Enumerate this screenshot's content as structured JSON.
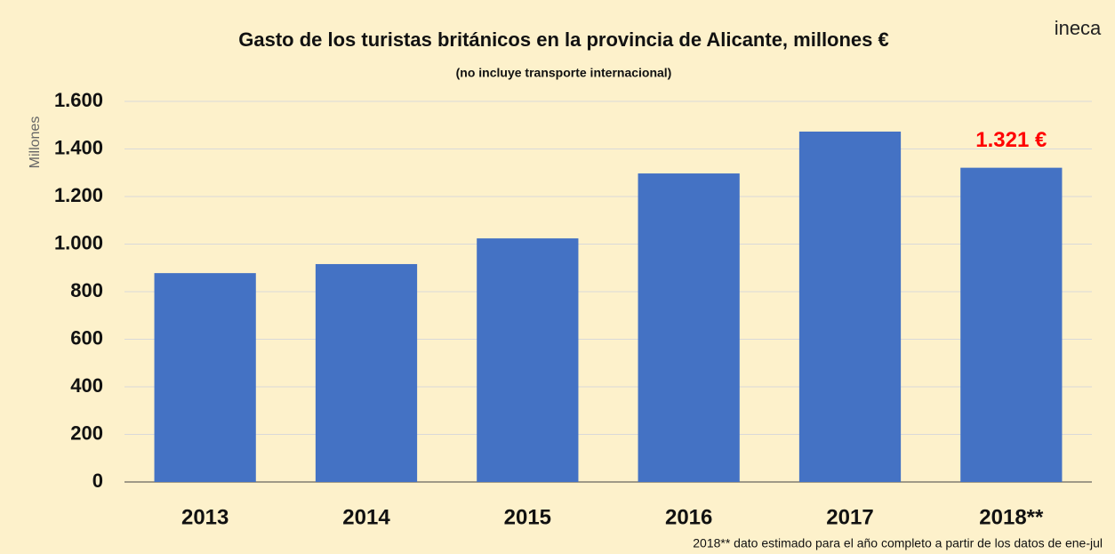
{
  "chart_data": {
    "type": "bar",
    "title": "Gasto de los turistas británicos en la provincia de Alicante, millones €",
    "subtitle": "(no incluye transporte internacional)",
    "y_label": "Millones",
    "logo": "ineca",
    "footnote": "2018** dato estimado para el año completo a partir de los datos de ene-jul",
    "categories": [
      "2013",
      "2014",
      "2015",
      "2016",
      "2017",
      "2018**"
    ],
    "values": [
      878,
      916,
      1024,
      1297,
      1473,
      1321
    ],
    "value_labels": [
      null,
      null,
      null,
      null,
      null,
      "1.321 €"
    ],
    "color": "#4472c4",
    "ylim": [
      0,
      1600
    ],
    "yticks": [
      0,
      200,
      400,
      600,
      800,
      {
        "value": 1000,
        "label": "1.000"
      },
      {
        "value": 1200,
        "label": "1.200"
      },
      {
        "value": 1400,
        "label": "1.400"
      },
      {
        "value": 1600,
        "label": "1.600"
      }
    ],
    "grid": true
  }
}
